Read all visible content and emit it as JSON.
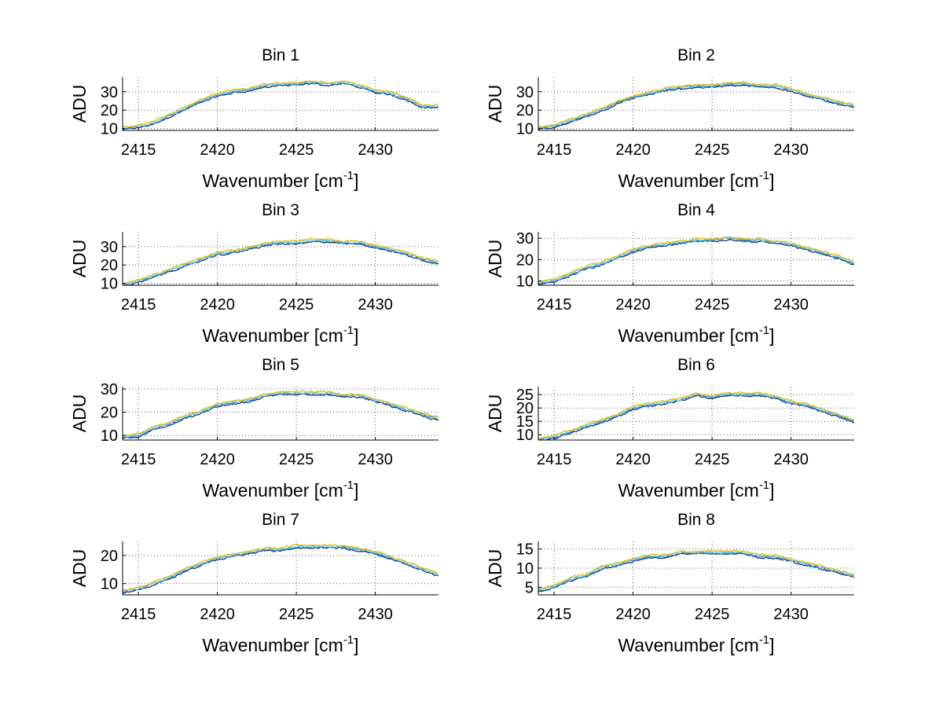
{
  "figure": {
    "background": "#ffffff"
  },
  "chart_data": {
    "type": "line",
    "layout": "grid 4 rows x 2 columns",
    "x": {
      "min": 2414,
      "max": 2434,
      "ticks": [
        2415,
        2420,
        2425,
        2430
      ]
    },
    "xlabel_base": "Wavenumber [cm",
    "xlabel_sup": "-1",
    "xlabel_close": "]",
    "ylabel": "ADU",
    "grid": "dotted",
    "series_colors": [
      "#0b2a6f",
      "#1e90d8",
      "#7fd8f0",
      "#e8b800"
    ],
    "series_offsets": [
      -0.6,
      0,
      0.5,
      1.0
    ],
    "shape_x": [
      2414,
      2415,
      2416,
      2417,
      2418,
      2419,
      2420,
      2421,
      2422,
      2423,
      2424,
      2425,
      2426,
      2427,
      2428,
      2429,
      2430,
      2431,
      2432,
      2433,
      2434
    ],
    "panels": [
      {
        "title": "Bin 1",
        "ylim": [
          9,
          38
        ],
        "yticks": [
          10,
          20,
          30
        ],
        "shape_y": [
          10,
          11,
          13,
          17,
          21,
          25,
          28,
          30,
          31,
          33,
          34,
          34,
          35,
          34,
          35,
          33,
          30,
          29,
          26,
          22,
          22
        ]
      },
      {
        "title": "Bin 2",
        "ylim": [
          9,
          38
        ],
        "yticks": [
          10,
          20,
          30
        ],
        "shape_y": [
          10,
          11,
          14,
          17,
          20,
          24,
          27,
          29,
          31,
          32,
          33,
          33,
          34,
          34,
          33,
          33,
          31,
          28,
          26,
          24,
          22
        ]
      },
      {
        "title": "Bin 3",
        "ylim": [
          9,
          38
        ],
        "yticks": [
          10,
          20,
          30
        ],
        "shape_y": [
          9,
          11,
          14,
          17,
          20,
          23,
          26,
          27,
          29,
          31,
          32,
          32,
          33,
          33,
          32,
          32,
          30,
          28,
          26,
          23,
          21
        ]
      },
      {
        "title": "Bin 4",
        "ylim": [
          8,
          33
        ],
        "yticks": [
          10,
          20,
          30
        ],
        "shape_y": [
          9,
          10,
          13,
          16,
          18,
          21,
          24,
          26,
          27,
          28,
          29,
          29,
          30,
          29,
          29,
          28,
          27,
          25,
          23,
          21,
          18
        ]
      },
      {
        "title": "Bin 5",
        "ylim": [
          8,
          31
        ],
        "yticks": [
          10,
          20,
          30
        ],
        "shape_y": [
          9,
          10,
          13,
          15,
          18,
          20,
          23,
          24,
          25,
          27,
          28,
          28,
          28,
          28,
          27,
          27,
          25,
          23,
          21,
          19,
          17
        ]
      },
      {
        "title": "Bin 6",
        "ylim": [
          8,
          28
        ],
        "yticks": [
          10,
          15,
          20,
          25
        ],
        "shape_y": [
          8,
          9,
          11,
          13,
          15,
          17,
          20,
          21,
          22,
          23,
          25,
          24,
          25,
          25,
          25,
          24,
          22,
          21,
          19,
          17,
          15
        ]
      },
      {
        "title": "Bin 7",
        "ylim": [
          6,
          25
        ],
        "yticks": [
          10,
          20
        ],
        "shape_y": [
          7,
          8,
          10,
          12,
          15,
          17,
          19,
          20,
          21,
          22,
          22,
          23,
          23,
          23,
          23,
          22,
          21,
          19,
          17,
          15,
          13
        ]
      },
      {
        "title": "Bin 8",
        "ylim": [
          3,
          17
        ],
        "yticks": [
          5,
          10,
          15
        ],
        "shape_y": [
          4,
          5,
          7,
          8,
          10,
          11,
          12,
          13,
          13,
          14,
          14,
          14,
          14,
          14,
          13,
          13,
          12,
          11,
          10,
          9,
          8
        ]
      }
    ]
  }
}
